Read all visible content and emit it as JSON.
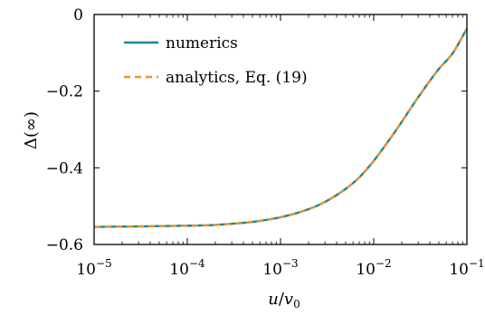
{
  "chart_data": {
    "type": "line",
    "x_scale": "log",
    "xlim": [
      1e-05,
      0.1
    ],
    "ylim": [
      -0.6,
      0
    ],
    "xlabel": "u/v0",
    "ylabel": "Δ(∞)",
    "x_ticks": [
      {
        "value": 1e-05,
        "base": "10",
        "exp": "−5"
      },
      {
        "value": 0.0001,
        "base": "10",
        "exp": "−4"
      },
      {
        "value": 0.001,
        "base": "10",
        "exp": "−3"
      },
      {
        "value": 0.01,
        "base": "10",
        "exp": "−2"
      },
      {
        "value": 0.1,
        "base": "10",
        "exp": "−1"
      }
    ],
    "y_ticks": [
      {
        "value": 0,
        "label": "0"
      },
      {
        "value": -0.2,
        "label": "−0.2"
      },
      {
        "value": -0.4,
        "label": "−0.4"
      },
      {
        "value": -0.6,
        "label": "−0.6"
      }
    ],
    "grid": false,
    "legend_position": "top-left",
    "series": [
      {
        "name": "numerics",
        "color": "#1a8a8a",
        "style": "solid",
        "x": [
          1e-05,
          3e-05,
          0.0001,
          0.0002,
          0.0003,
          0.0005,
          0.0007,
          0.001,
          0.0015,
          0.002,
          0.003,
          0.005,
          0.007,
          0.01,
          0.015,
          0.02,
          0.03,
          0.05,
          0.07,
          0.1
        ],
        "y": [
          -0.554,
          -0.553,
          -0.551,
          -0.549,
          -0.546,
          -0.541,
          -0.536,
          -0.529,
          -0.518,
          -0.508,
          -0.489,
          -0.455,
          -0.425,
          -0.382,
          -0.324,
          -0.28,
          -0.216,
          -0.142,
          -0.102,
          -0.037
        ]
      },
      {
        "name": "analytics, Eq. (19)",
        "color": "#f0902a",
        "style": "dashed",
        "x": [
          1e-05,
          3e-05,
          0.0001,
          0.0002,
          0.0003,
          0.0005,
          0.0007,
          0.001,
          0.0015,
          0.002,
          0.003,
          0.005,
          0.007,
          0.01,
          0.015,
          0.02,
          0.03,
          0.05,
          0.07,
          0.1
        ],
        "y": [
          -0.554,
          -0.553,
          -0.551,
          -0.549,
          -0.546,
          -0.541,
          -0.536,
          -0.529,
          -0.518,
          -0.508,
          -0.489,
          -0.455,
          -0.425,
          -0.382,
          -0.324,
          -0.28,
          -0.216,
          -0.142,
          -0.102,
          -0.037
        ]
      }
    ]
  }
}
